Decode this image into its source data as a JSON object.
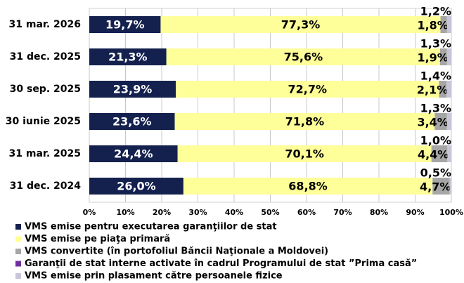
{
  "chart_data": {
    "type": "stacked-bar-horizontal",
    "categories": [
      "31 mar. 2026",
      "31 dec. 2025",
      "30 sep. 2025",
      "30 iunie 2025",
      "31 mar. 2025",
      "31 dec. 2024"
    ],
    "series": [
      {
        "name": "VMS emise pentru executarea garanţiilor de stat",
        "color": "#14214f",
        "values": [
          19.7,
          21.3,
          23.9,
          23.6,
          24.4,
          26.0
        ],
        "value_labels": [
          "19,7%",
          "21,3%",
          "23,9%",
          "23,6%",
          "24,4%",
          "26,0%"
        ]
      },
      {
        "name": "VMS emise pe piaţa primară",
        "color": "#ffff99",
        "values": [
          77.3,
          75.6,
          72.7,
          71.8,
          70.1,
          68.8
        ],
        "value_labels": [
          "77,3%",
          "75,6%",
          "72,7%",
          "71,8%",
          "70,1%",
          "68,8%"
        ]
      },
      {
        "name": "VMS convertite (în portofoliul Băncii Naţionale a Moldovei)",
        "color": "#a6a6a6",
        "values": [
          1.8,
          1.9,
          2.1,
          3.4,
          4.4,
          4.7
        ],
        "value_labels": [
          "1,8%",
          "1,9%",
          "2,1%",
          "3,4%",
          "4,4%",
          "4,7%"
        ]
      },
      {
        "name": "Garanţii de stat interne activate în cadrul Programului de stat ”Prima casă”",
        "color": "#7030a0",
        "values": [
          0,
          0,
          0,
          0,
          0,
          0
        ]
      },
      {
        "name": "VMS emise prin plasament către persoanele fizice",
        "color": "#c9c5d8",
        "values": [
          1.2,
          1.3,
          1.4,
          1.3,
          1.0,
          0.5
        ],
        "value_labels": [
          "1,2%",
          "1,3%",
          "1,4%",
          "1,3%",
          "1,0%",
          "0,5%"
        ]
      }
    ],
    "xlim": [
      0,
      100
    ],
    "xticks": [
      {
        "value": 0,
        "label": "0%"
      },
      {
        "value": 10,
        "label": "10%"
      },
      {
        "value": 20,
        "label": "20%"
      },
      {
        "value": 30,
        "label": "30%"
      },
      {
        "value": 40,
        "label": "40%"
      },
      {
        "value": 50,
        "label": "50%"
      },
      {
        "value": 60,
        "label": "60%"
      },
      {
        "value": 70,
        "label": "70%"
      },
      {
        "value": 80,
        "label": "80%"
      },
      {
        "value": 90,
        "label": "90%"
      },
      {
        "value": 100,
        "label": "100%"
      }
    ],
    "grid": true
  }
}
